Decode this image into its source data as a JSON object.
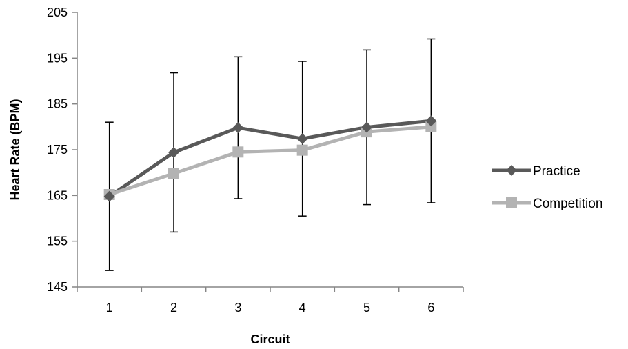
{
  "chart_data": {
    "type": "line",
    "title": "",
    "xlabel": "Circuit",
    "ylabel": "Heart Rate (BPM)",
    "categories": [
      "1",
      "2",
      "3",
      "4",
      "5",
      "6"
    ],
    "ylim": [
      145,
      205
    ],
    "yticks": [
      "145",
      "155",
      "165",
      "175",
      "185",
      "195",
      "205"
    ],
    "grid": false,
    "legend_position": "right",
    "series": [
      {
        "name": "Practice",
        "values": [
          164.8,
          174.4,
          179.8,
          177.4,
          179.9,
          181.3
        ],
        "error": [
          16.2,
          17.4,
          15.5,
          16.9,
          16.9,
          17.9
        ],
        "color": "#595959",
        "marker": "diamond"
      },
      {
        "name": "Competition",
        "values": [
          165.2,
          169.8,
          174.5,
          174.9,
          178.9,
          180.0
        ],
        "color": "#b3b3b3",
        "marker": "square"
      }
    ]
  }
}
